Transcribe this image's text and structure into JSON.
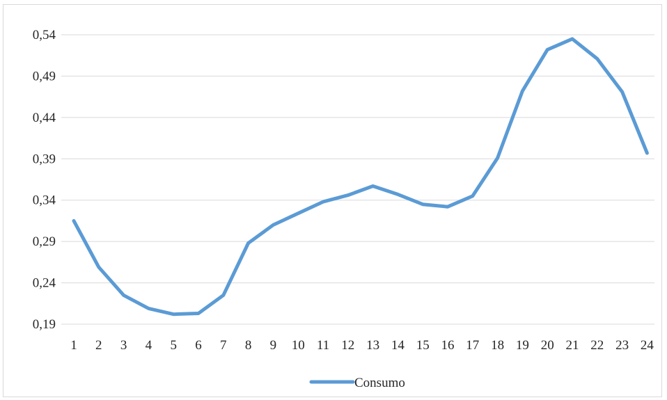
{
  "chart_data": {
    "type": "line",
    "categories": [
      "1",
      "2",
      "3",
      "4",
      "5",
      "6",
      "7",
      "8",
      "9",
      "10",
      "11",
      "12",
      "13",
      "14",
      "15",
      "16",
      "17",
      "18",
      "19",
      "20",
      "21",
      "22",
      "23",
      "24"
    ],
    "series": [
      {
        "name": "Consumo",
        "color": "#5b9bd5",
        "values": [
          0.315,
          0.259,
          0.225,
          0.209,
          0.202,
          0.203,
          0.225,
          0.288,
          0.31,
          0.324,
          0.338,
          0.346,
          0.357,
          0.347,
          0.335,
          0.332,
          0.345,
          0.391,
          0.472,
          0.522,
          0.535,
          0.511,
          0.471,
          0.397
        ]
      }
    ],
    "y_ticks": [
      "0,54",
      "0,49",
      "0,44",
      "0,39",
      "0,34",
      "0,29",
      "0,24",
      "0,19"
    ],
    "y_tick_values": [
      0.54,
      0.49,
      0.44,
      0.39,
      0.34,
      0.29,
      0.24,
      0.19
    ],
    "ylim": [
      0.19,
      0.54
    ],
    "grid": true,
    "legend_position": "bottom",
    "gridline_color": "#d9d9d9"
  }
}
